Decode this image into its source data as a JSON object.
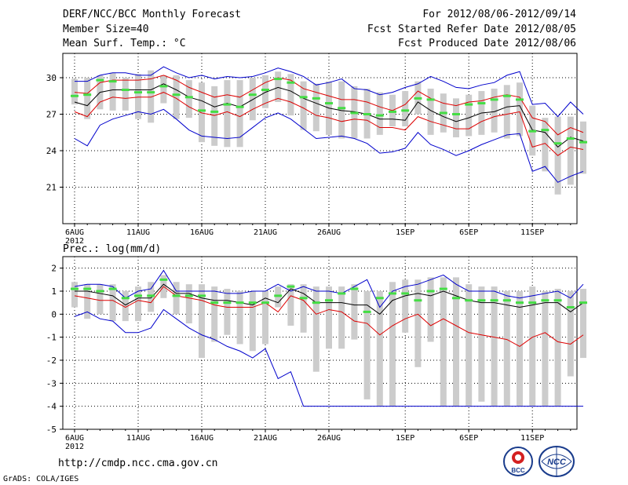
{
  "header": {
    "title": "DERF/NCC/BCC Monthly Forecast",
    "member_size": "Member Size=40",
    "variable": "Mean Surf. Temp.: °C",
    "period": "For 2012/08/06-2012/09/14",
    "fcst_started": "Fcst Started Refer Date 2012/08/05",
    "fcst_produced": "Fcst Produced Date 2012/08/06"
  },
  "footer": {
    "url": "http://cmdp.ncc.cma.gov.cn",
    "grads": "GrADS: COLA/IGES",
    "logo_bcc": "BCC",
    "logo_ncc": "NCC"
  },
  "colors": {
    "box": "#cccccc",
    "hindcast": "#44dd44",
    "ensemble_mean": "#000000",
    "std_band": "#dd0000",
    "extremes": "#0000cc"
  },
  "chart_data": [
    {
      "type": "line",
      "title": "Mean Surf. Temp.: °C",
      "x_day_count": 40,
      "x_ticks": [
        {
          "day": 0,
          "label": "6AUG",
          "sub": "2012"
        },
        {
          "day": 5,
          "label": "11AUG"
        },
        {
          "day": 10,
          "label": "16AUG"
        },
        {
          "day": 15,
          "label": "21AUG"
        },
        {
          "day": 20,
          "label": "26AUG"
        },
        {
          "day": 26,
          "label": "1SEP"
        },
        {
          "day": 31,
          "label": "6SEP"
        },
        {
          "day": 36,
          "label": "11SEP"
        }
      ],
      "ylim": [
        18,
        32
      ],
      "y_ticks": [
        21,
        24,
        27,
        30
      ],
      "series": [
        {
          "name": "max",
          "values": [
            29.7,
            29.7,
            30.2,
            30.4,
            30.4,
            30.2,
            30.2,
            30.9,
            30.4,
            30.0,
            30.2,
            29.9,
            30.1,
            30.0,
            30.1,
            30.4,
            30.8,
            30.5,
            30.1,
            29.4,
            29.6,
            29.9,
            29.1,
            29.0,
            28.6,
            28.8,
            29.2,
            29.5,
            30.1,
            29.7,
            29.2,
            29.1,
            29.4,
            29.6,
            30.2,
            30.5,
            27.8,
            27.9,
            26.8,
            28.0,
            27.0
          ]
        },
        {
          "name": "mean_plus_std",
          "values": [
            28.8,
            28.7,
            29.6,
            29.8,
            29.8,
            29.8,
            29.9,
            30.2,
            29.8,
            29.2,
            28.8,
            28.4,
            28.6,
            28.4,
            29.0,
            29.6,
            30.0,
            29.8,
            29.1,
            28.8,
            28.5,
            28.2,
            28.2,
            28.0,
            27.6,
            27.3,
            27.8,
            28.9,
            28.3,
            27.9,
            27.7,
            28.0,
            28.1,
            28.4,
            28.6,
            28.4,
            26.7,
            26.4,
            25.3,
            25.9,
            25.5
          ]
        },
        {
          "name": "mean",
          "values": [
            28.0,
            27.7,
            28.8,
            29.0,
            29.0,
            29.0,
            29.0,
            29.5,
            29.0,
            28.4,
            28.1,
            27.6,
            27.9,
            27.6,
            28.2,
            28.8,
            29.2,
            28.9,
            28.3,
            27.9,
            27.5,
            27.3,
            27.2,
            27.0,
            26.6,
            26.6,
            26.5,
            28.0,
            27.3,
            26.8,
            26.4,
            26.7,
            27.1,
            27.2,
            27.6,
            27.7,
            25.7,
            25.5,
            24.3,
            25.1,
            24.8
          ]
        },
        {
          "name": "mean_minus_std",
          "values": [
            27.2,
            26.8,
            28.0,
            28.4,
            28.3,
            28.4,
            28.4,
            28.8,
            28.3,
            27.6,
            27.1,
            26.9,
            27.2,
            26.8,
            27.4,
            27.9,
            28.3,
            28.0,
            27.5,
            26.9,
            26.7,
            26.4,
            26.6,
            26.5,
            25.9,
            25.9,
            25.7,
            26.8,
            26.4,
            26.1,
            25.8,
            25.8,
            26.4,
            26.8,
            27.0,
            27.2,
            24.3,
            24.6,
            23.6,
            24.3,
            24.1
          ]
        },
        {
          "name": "min",
          "values": [
            25.0,
            24.4,
            26.1,
            26.6,
            26.9,
            27.2,
            27.0,
            27.4,
            26.6,
            25.7,
            25.2,
            25.1,
            25.0,
            25.1,
            25.9,
            26.7,
            27.1,
            26.6,
            25.8,
            25.0,
            25.1,
            25.2,
            25.0,
            24.6,
            23.8,
            23.9,
            24.2,
            25.5,
            24.5,
            24.1,
            23.6,
            24.0,
            24.5,
            24.9,
            25.3,
            25.4,
            22.3,
            22.7,
            21.4,
            21.9,
            22.3
          ]
        },
        {
          "name": "hindcast",
          "values": [
            28.5,
            28.6,
            29.8,
            29.7,
            29.0,
            28.8,
            28.8,
            29.3,
            28.6,
            28.4,
            27.3,
            27.2,
            27.8,
            27.6,
            28.6,
            29.0,
            29.9,
            29.6,
            28.4,
            28.3,
            27.9,
            27.5,
            27.1,
            27.0,
            26.9,
            27.2,
            27.3,
            28.3,
            28.2,
            27.1,
            27.0,
            27.8,
            27.9,
            28.2,
            28.5,
            28.2,
            25.6,
            25.7,
            24.6,
            25.0,
            24.7
          ]
        }
      ],
      "box_range": [
        [
          27.8,
          29.9
        ],
        [
          26.6,
          30.0
        ],
        [
          27.4,
          30.2
        ],
        [
          27.3,
          30.4
        ],
        [
          27.3,
          30.0
        ],
        [
          26.6,
          30.3
        ],
        [
          26.3,
          30.6
        ],
        [
          27.9,
          30.2
        ],
        [
          26.6,
          30.2
        ],
        [
          26.7,
          29.8
        ],
        [
          24.7,
          29.6
        ],
        [
          24.4,
          29.3
        ],
        [
          24.3,
          29.8
        ],
        [
          24.3,
          29.8
        ],
        [
          26.5,
          30.0
        ],
        [
          27.5,
          30.2
        ],
        [
          28.0,
          30.5
        ],
        [
          26.9,
          30.3
        ],
        [
          25.7,
          29.7
        ],
        [
          25.6,
          29.5
        ],
        [
          25.3,
          29.7
        ],
        [
          25.0,
          29.7
        ],
        [
          25.0,
          29.3
        ],
        [
          25.0,
          29.1
        ],
        [
          25.3,
          28.8
        ],
        [
          26.0,
          28.6
        ],
        [
          26.0,
          28.9
        ],
        [
          27.0,
          29.7
        ],
        [
          25.3,
          29.1
        ],
        [
          25.5,
          28.7
        ],
        [
          25.1,
          28.3
        ],
        [
          25.2,
          28.6
        ],
        [
          25.3,
          28.9
        ],
        [
          25.5,
          29.1
        ],
        [
          25.0,
          29.4
        ],
        [
          25.2,
          29.6
        ],
        [
          23.6,
          27.7
        ],
        [
          22.3,
          26.7
        ],
        [
          20.4,
          26.8
        ],
        [
          21.2,
          26.8
        ],
        [
          22.1,
          26.4
        ]
      ]
    },
    {
      "type": "line",
      "title": "Prec.: log(mm/d)",
      "x_day_count": 40,
      "x_ticks": [
        {
          "day": 0,
          "label": "6AUG",
          "sub": "2012"
        },
        {
          "day": 5,
          "label": "11AUG"
        },
        {
          "day": 10,
          "label": "16AUG"
        },
        {
          "day": 15,
          "label": "21AUG"
        },
        {
          "day": 20,
          "label": "26AUG"
        },
        {
          "day": 26,
          "label": "1SEP"
        },
        {
          "day": 31,
          "label": "6SEP"
        },
        {
          "day": 36,
          "label": "11SEP"
        }
      ],
      "ylim": [
        -5,
        2.5
      ],
      "y_ticks": [
        -5,
        -4,
        -3,
        -2,
        -1,
        0,
        1,
        2
      ],
      "series": [
        {
          "name": "max",
          "values": [
            1.2,
            1.3,
            1.3,
            1.2,
            0.7,
            1.0,
            1.1,
            1.9,
            1.0,
            1.0,
            1.0,
            1.0,
            0.9,
            0.9,
            1.0,
            1.0,
            1.3,
            1.0,
            1.2,
            1.0,
            1.0,
            0.9,
            1.2,
            1.5,
            0.3,
            1.0,
            1.2,
            1.3,
            1.5,
            1.7,
            1.3,
            1.0,
            1.0,
            1.0,
            0.8,
            0.7,
            0.8,
            0.9,
            1.0,
            0.7,
            1.3
          ]
        },
        {
          "name": "mean",
          "values": [
            1.0,
            1.0,
            0.9,
            0.8,
            0.4,
            0.7,
            0.7,
            1.3,
            0.9,
            0.9,
            0.7,
            0.6,
            0.6,
            0.5,
            0.4,
            0.7,
            0.5,
            1.1,
            0.9,
            0.5,
            0.5,
            0.5,
            0.4,
            0.4,
            0.0,
            0.6,
            0.8,
            0.9,
            0.8,
            1.0,
            0.8,
            0.6,
            0.5,
            0.5,
            0.4,
            0.3,
            0.4,
            0.5,
            0.5,
            0.1,
            0.5
          ]
        },
        {
          "name": "mean_minus_std",
          "values": [
            0.8,
            0.7,
            0.6,
            0.6,
            0.3,
            0.6,
            0.5,
            1.2,
            0.8,
            0.7,
            0.6,
            0.4,
            0.3,
            0.3,
            0.3,
            0.5,
            0.1,
            0.8,
            0.6,
            0.0,
            0.2,
            0.1,
            -0.3,
            -0.4,
            -0.9,
            -0.5,
            -0.2,
            0.0,
            -0.5,
            -0.2,
            -0.5,
            -0.8,
            -0.9,
            -1.0,
            -1.1,
            -1.4,
            -1.0,
            -0.8,
            -1.2,
            -1.3,
            -0.9
          ]
        },
        {
          "name": "min",
          "values": [
            -0.1,
            0.1,
            -0.2,
            -0.3,
            -0.8,
            -0.8,
            -0.6,
            0.2,
            -0.2,
            -0.6,
            -0.9,
            -1.1,
            -1.4,
            -1.6,
            -1.9,
            -1.5,
            -2.8,
            -2.5,
            -4.0,
            -4.0,
            -4.0,
            -4.0,
            -4.0,
            -4.0,
            -4.0,
            -4.0,
            -4.0,
            -4.0,
            -4.0,
            -4.0,
            -4.0,
            -4.0,
            -4.0,
            -4.0,
            -4.0,
            -4.0,
            -4.0,
            -4.0,
            -4.0,
            -4.0,
            -4.0
          ]
        },
        {
          "name": "hindcast",
          "values": [
            1.1,
            1.1,
            1.0,
            1.1,
            0.7,
            0.8,
            0.8,
            1.5,
            0.8,
            0.8,
            0.8,
            0.5,
            0.5,
            0.5,
            0.5,
            0.5,
            0.8,
            1.2,
            0.7,
            0.5,
            0.6,
            0.9,
            1.1,
            0.1,
            0.7,
            0.9,
            0.9,
            0.6,
            1.0,
            1.1,
            0.7,
            0.6,
            0.6,
            0.6,
            0.6,
            0.5,
            0.5,
            0.6,
            0.6,
            0.3,
            0.5
          ]
        }
      ],
      "box_range": [
        [
          0.3,
          1.4
        ],
        [
          -0.2,
          1.3
        ],
        [
          0.0,
          1.3
        ],
        [
          -0.3,
          1.3
        ],
        [
          -0.3,
          1.0
        ],
        [
          -0.3,
          1.2
        ],
        [
          0.1,
          1.4
        ],
        [
          0.7,
          1.7
        ],
        [
          0.0,
          1.4
        ],
        [
          -0.4,
          1.3
        ],
        [
          -1.9,
          1.3
        ],
        [
          -1.2,
          1.2
        ],
        [
          -0.9,
          1.1
        ],
        [
          -1.3,
          1.0
        ],
        [
          -1.6,
          1.0
        ],
        [
          -1.3,
          1.0
        ],
        [
          0.3,
          1.2
        ],
        [
          -0.5,
          1.3
        ],
        [
          -0.8,
          1.3
        ],
        [
          -2.5,
          1.2
        ],
        [
          -1.5,
          1.2
        ],
        [
          -1.5,
          1.2
        ],
        [
          -1.1,
          1.3
        ],
        [
          -3.7,
          1.0
        ],
        [
          -4.0,
          1.0
        ],
        [
          -4.0,
          1.4
        ],
        [
          -0.8,
          1.5
        ],
        [
          -2.3,
          1.5
        ],
        [
          -1.2,
          1.6
        ],
        [
          -4.0,
          1.6
        ],
        [
          -4.0,
          1.6
        ],
        [
          -4.0,
          1.3
        ],
        [
          -3.8,
          1.2
        ],
        [
          -4.0,
          1.2
        ],
        [
          -4.0,
          1.0
        ],
        [
          -4.0,
          1.0
        ],
        [
          -4.0,
          1.2
        ],
        [
          -4.0,
          1.0
        ],
        [
          -4.0,
          1.1
        ],
        [
          -2.7,
          1.0
        ],
        [
          -1.9,
          1.1
        ]
      ]
    }
  ]
}
